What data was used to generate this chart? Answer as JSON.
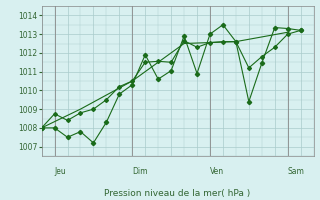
{
  "title": "",
  "xlabel": "Pression niveau de la mer( hPa )",
  "ylabel": "",
  "bg_color": "#d8f0f0",
  "grid_color": "#aacccc",
  "line_color": "#1a6b1a",
  "ylim": [
    1006.5,
    1014.5
  ],
  "yticks": [
    1007,
    1008,
    1009,
    1010,
    1011,
    1012,
    1013,
    1014
  ],
  "day_labels": [
    "Jeu",
    "Dim",
    "Ven",
    "Sam"
  ],
  "day_positions": [
    0.5,
    3.5,
    6.5,
    9.5
  ],
  "vline_positions": [
    0.5,
    3.5,
    6.5,
    9.5
  ],
  "series1_x": [
    0.0,
    0.5,
    1.0,
    1.5,
    2.0,
    2.5,
    3.0,
    3.5,
    4.0,
    4.5,
    5.0,
    5.5,
    6.0,
    6.5,
    7.0,
    7.5,
    8.0,
    8.5,
    9.0,
    9.5,
    10.0
  ],
  "series1_y": [
    1008.0,
    1008.0,
    1007.5,
    1007.8,
    1007.2,
    1008.3,
    1009.8,
    1010.3,
    1011.9,
    1010.6,
    1011.05,
    1012.9,
    1010.9,
    1013.0,
    1013.5,
    1012.6,
    1009.4,
    1011.45,
    1013.35,
    1013.3,
    1013.2
  ],
  "series2_x": [
    0.0,
    0.5,
    1.0,
    1.5,
    2.0,
    2.5,
    3.0,
    3.5,
    4.0,
    4.5,
    5.0,
    5.5,
    6.0,
    6.5,
    7.0,
    7.5,
    8.0,
    8.5,
    9.0,
    9.5,
    10.0
  ],
  "series2_y": [
    1008.0,
    1008.75,
    1008.4,
    1008.8,
    1009.0,
    1009.5,
    1010.2,
    1010.5,
    1011.5,
    1011.55,
    1011.5,
    1012.65,
    1012.3,
    1012.55,
    1012.6,
    1012.6,
    1011.2,
    1011.8,
    1012.3,
    1013.0,
    1013.2
  ],
  "series3_x": [
    0.0,
    1.5,
    3.5,
    5.5,
    7.5,
    9.5
  ],
  "series3_y": [
    1008.0,
    1009.0,
    1010.5,
    1012.5,
    1012.6,
    1013.1
  ]
}
